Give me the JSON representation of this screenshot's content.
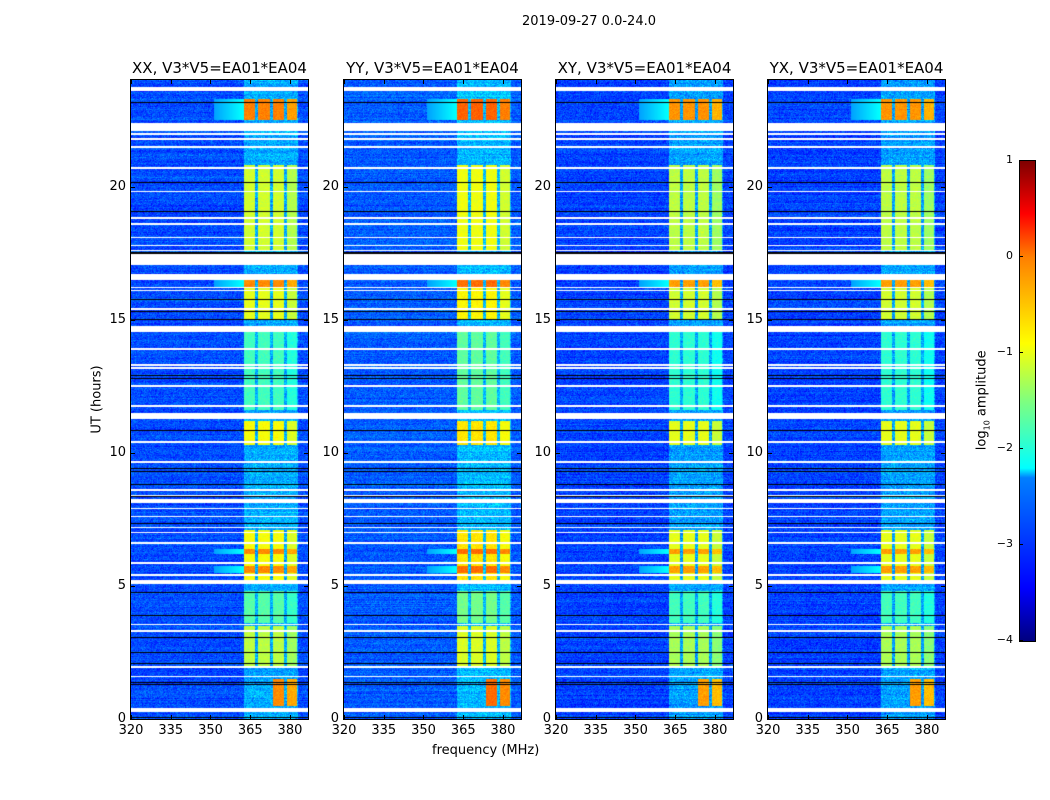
{
  "chart_data": {
    "type": "heatmap",
    "title": "2019-09-27 0.0-24.0",
    "xlabel": "frequency (MHz)",
    "ylabel": "UT (hours)",
    "xlim": [
      320,
      386.8
    ],
    "ylim": [
      0,
      24
    ],
    "xticks": [
      320,
      335,
      350,
      365,
      380
    ],
    "yticks": [
      0,
      5,
      10,
      15,
      20
    ],
    "panels": [
      {
        "title": "XX, V3*V5=EA01*EA04",
        "level_offset": 0.0
      },
      {
        "title": "YY, V3*V5=EA01*EA04",
        "level_offset": 0.15
      },
      {
        "title": "XY, V3*V5=EA01*EA04",
        "level_offset": -0.1
      },
      {
        "title": "YX, V3*V5=EA01*EA04",
        "level_offset": -0.1
      }
    ],
    "background_log_amplitude": -3.0,
    "rfi_channels_mhz": [
      [
        362.3,
        367.2
      ],
      [
        367.6,
        372.8
      ],
      [
        373.3,
        378.1
      ],
      [
        378.6,
        383.0
      ]
    ],
    "rfi_segments": [
      {
        "ut": [
          22.5,
          23.3
        ],
        "channels": [
          0,
          1,
          2,
          3
        ],
        "log_amp": -0.25
      },
      {
        "ut": [
          17.6,
          20.8
        ],
        "channels": [
          0,
          1,
          2,
          3
        ],
        "log_amp": -1.1
      },
      {
        "ut": [
          16.2,
          16.5
        ],
        "channels": [
          0,
          1,
          2,
          3
        ],
        "log_amp": -0.3
      },
      {
        "ut": [
          15.0,
          16.2
        ],
        "channels": [
          0,
          1,
          2,
          3
        ],
        "log_amp": -1.0
      },
      {
        "ut": [
          11.6,
          14.6
        ],
        "channels": [
          0,
          1,
          2,
          3
        ],
        "log_amp": -1.8
      },
      {
        "ut": [
          10.3,
          11.2
        ],
        "channels": [
          0,
          1,
          2,
          3
        ],
        "log_amp": -0.9
      },
      {
        "ut": [
          6.2,
          6.4
        ],
        "channels": [
          0,
          1,
          2,
          3
        ],
        "log_amp": -0.3
      },
      {
        "ut": [
          5.5,
          5.75
        ],
        "channels": [
          0,
          1,
          2,
          3
        ],
        "log_amp": -0.3
      },
      {
        "ut": [
          5.2,
          7.1
        ],
        "channels": [
          0,
          1,
          2,
          3
        ],
        "log_amp": -0.9
      },
      {
        "ut": [
          3.6,
          4.8
        ],
        "channels": [
          0,
          1,
          2,
          3
        ],
        "log_amp": -1.7
      },
      {
        "ut": [
          2.0,
          3.5
        ],
        "channels": [
          0,
          1,
          2,
          3
        ],
        "log_amp": -1.2
      },
      {
        "ut": [
          0.5,
          1.5
        ],
        "channels": [
          2,
          3
        ],
        "log_amp": -0.3
      }
    ],
    "flagged_ut": [
      [
        23.6,
        23.75
      ],
      [
        22.1,
        22.4
      ],
      [
        21.95,
        22.02
      ],
      [
        21.75,
        21.82
      ],
      [
        21.45,
        21.52
      ],
      [
        20.65,
        20.72
      ],
      [
        19.78,
        19.84
      ],
      [
        18.78,
        18.84
      ],
      [
        18.56,
        18.62
      ],
      [
        18.06,
        18.12
      ],
      [
        17.76,
        17.82
      ],
      [
        17.56,
        17.62
      ],
      [
        17.05,
        17.45
      ],
      [
        16.5,
        16.7
      ],
      [
        16.18,
        16.23
      ],
      [
        16.06,
        16.11
      ],
      [
        15.36,
        15.42
      ],
      [
        14.55,
        14.75
      ],
      [
        13.87,
        13.93
      ],
      [
        13.27,
        13.33
      ],
      [
        13.15,
        13.21
      ],
      [
        12.47,
        12.53
      ],
      [
        11.72,
        11.8
      ],
      [
        11.25,
        11.5
      ],
      [
        10.37,
        10.43
      ],
      [
        9.62,
        9.68
      ],
      [
        8.57,
        8.63
      ],
      [
        8.37,
        8.43
      ],
      [
        8.12,
        8.28
      ],
      [
        7.87,
        7.93
      ],
      [
        7.57,
        7.63
      ],
      [
        7.17,
        7.23
      ],
      [
        6.97,
        7.03
      ],
      [
        6.57,
        6.63
      ],
      [
        5.82,
        5.88
      ],
      [
        5.37,
        5.43
      ],
      [
        5.08,
        5.22
      ],
      [
        3.52,
        3.58
      ],
      [
        3.27,
        3.33
      ],
      [
        1.92,
        1.98
      ],
      [
        1.57,
        1.63
      ],
      [
        0.25,
        0.4
      ]
    ],
    "dark_ut": [
      23.15,
      20.15,
      19.05,
      17.5,
      15.75,
      15.3,
      15.0,
      12.9,
      12.8,
      10.85,
      9.3,
      9.4,
      8.8,
      8.35,
      7.35,
      4.75,
      3.9,
      3.05,
      2.5,
      2.1,
      1.3,
      1.38,
      0.05
    ],
    "colorbar": {
      "label_main": "log",
      "label_sub": "10",
      "label_rest": " amplitude",
      "range": [
        -4,
        1
      ],
      "ticks": [
        1,
        0,
        -1,
        -2,
        -3,
        -4
      ],
      "tick_labels": [
        "1",
        "0",
        "−1",
        "−2",
        "−3",
        "−4"
      ],
      "colormap": "jet"
    }
  }
}
